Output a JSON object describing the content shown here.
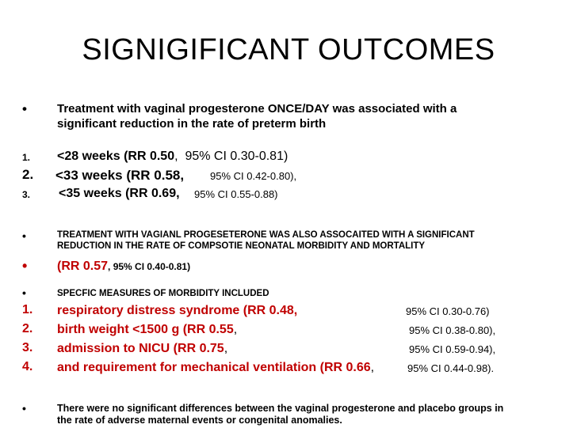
{
  "title": "SIGNIGIFICANT OUTCOMES",
  "bullet1": {
    "marker": "•",
    "line1": "Treatment with vaginal progesterone ONCE/DAY  was associated with a",
    "line2": "significant reduction in the rate of preterm birth"
  },
  "weeks": [
    {
      "marker": "1.",
      "label": "<28 weeks (RR 0.50",
      "sep": ",",
      "ci": "95% CI 0.30-0.81)"
    },
    {
      "marker": "2.",
      "label": "<33 weeks   (RR 0.58,",
      "ci": "95% CI 0.42-0.80),"
    },
    {
      "marker": "3.",
      "label": "<35 weeks   (RR 0.69,",
      "ci": "95% CI 0.55-0.88)"
    }
  ],
  "bullet2": {
    "marker": "•",
    "line1": "TREATMENT WITH VAGIANL PROGESETERONE WAS ALSO ASSOCAITED WITH A SIGNIFICANT",
    "line2": "REDUCTION IN THE RATE OF COMPSOTIE NEONATAL MORBIDITY AND MORTALITY"
  },
  "bullet3": {
    "marker": "•",
    "red": "(RR 0.57",
    "rest": ", 95% CI 0.40-0.81)"
  },
  "bullet4": {
    "marker": "•",
    "text": "SPECFIC MEASURES OF MORBIDITY INCLUDED"
  },
  "measures": [
    {
      "marker": "1.",
      "label": "respiratory distress syndrome (RR 0.48,",
      "sep": "",
      "ci": "95% CI 0.30-0.76)"
    },
    {
      "marker": "2.",
      "label": "birth weight <1500 g (RR 0.55",
      "sep": ",",
      "ci": "95% CI 0.38-0.80),"
    },
    {
      "marker": "3.",
      "label": "admission to NICU (RR 0.75",
      "sep": ",",
      "ci": "95% CI 0.59-0.94),"
    },
    {
      "marker": "4.",
      "label": "and requirement for mechanical ventilation (RR 0.66",
      "sep": ",",
      "ci": "95% CI 0.44-0.98)."
    }
  ],
  "bullet5": {
    "marker": "•",
    "line1": "There were no significant differences between the vaginal progesterone and placebo groups in",
    "line2": "the rate of adverse maternal events or congenital anomalies."
  },
  "colors": {
    "accent": "#c00000",
    "text": "#000000",
    "background": "#ffffff"
  }
}
